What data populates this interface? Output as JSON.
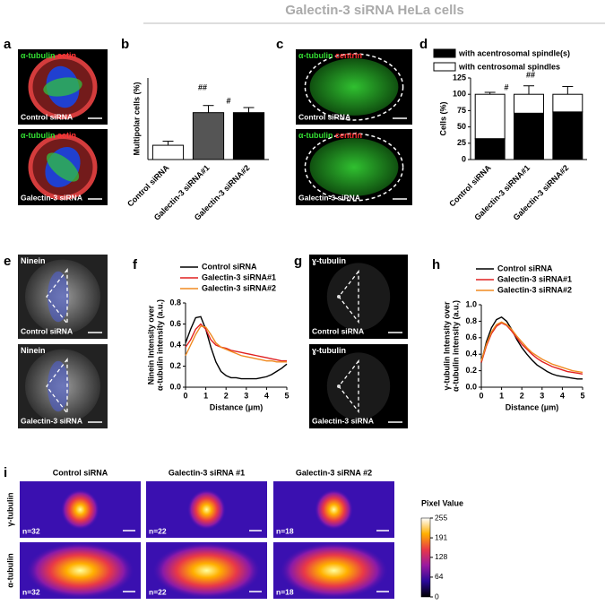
{
  "title": "Galectin-3 siRNA HeLa cells",
  "panel_labels": [
    "a",
    "b",
    "c",
    "d",
    "e",
    "f",
    "g",
    "h",
    "i"
  ],
  "images": {
    "a": [
      {
        "channels": [
          {
            "text": "α-tubulin",
            "color": "#33dd33"
          },
          {
            "text": "actin",
            "color": "#ff3333"
          }
        ],
        "caption": "Control siRNA"
      },
      {
        "channels": [
          {
            "text": "α-tubulin",
            "color": "#33dd33"
          },
          {
            "text": "actin",
            "color": "#ff3333"
          }
        ],
        "caption": "Galectin-3 siRNA"
      }
    ],
    "c": [
      {
        "channels": [
          {
            "text": "α-tubulin",
            "color": "#33dd33"
          },
          {
            "text": "centrin",
            "color": "#ff3333"
          }
        ],
        "caption": "Control siRNA"
      },
      {
        "channels": [
          {
            "text": "α-tubulin",
            "color": "#33dd33"
          },
          {
            "text": "centrin",
            "color": "#ff3333"
          }
        ],
        "caption": "Galectin-3 siRNA"
      }
    ],
    "e": [
      {
        "channels": [
          {
            "text": "Ninein",
            "color": "#ffffff"
          }
        ],
        "caption": "Control siRNA"
      },
      {
        "channels": [
          {
            "text": "Ninein",
            "color": "#ffffff"
          }
        ],
        "caption": "Galectin-3 siRNA"
      }
    ],
    "g": [
      {
        "channels": [
          {
            "text": "ɣ-tubulin",
            "color": "#ffffff"
          }
        ],
        "caption": "Control siRNA"
      },
      {
        "channels": [
          {
            "text": "ɣ-tubulin",
            "color": "#ffffff"
          }
        ],
        "caption": "Galectin-3 siRNA"
      }
    ]
  },
  "heatmap": {
    "columns": [
      "Control siRNA",
      "Galectin-3 siRNA #1",
      "Galectin-3 siRNA #2"
    ],
    "rows": [
      "γ-tubulin",
      "α-tubulin"
    ],
    "n": [
      [
        "n=32",
        "n=22",
        "n=18"
      ],
      [
        "n=32",
        "n=22",
        "n=18"
      ]
    ],
    "colorbar": {
      "label": "Pixel Value",
      "lim": [
        0,
        255
      ],
      "ticks": [
        0,
        64,
        128,
        191,
        255
      ]
    }
  },
  "chart_data": [
    {
      "type": "bar",
      "ylabel": "Multipolar cells (%)",
      "categories": [
        "Control siRNA",
        "Galectin-3 siRNA#1",
        "Galectin-3 siRNA#2"
      ],
      "values": [
        7,
        23,
        23
      ],
      "errors": [
        2,
        3.5,
        2.5
      ],
      "colors": [
        "#ffffff",
        "#555555",
        "#000000"
      ],
      "ylim": [
        0,
        40
      ],
      "annotations": [
        "##",
        "#"
      ]
    },
    {
      "type": "stacked_bar",
      "ylabel": "Cells (%)",
      "categories": [
        "Control siRNA",
        "Galectin-3 siRNA#1",
        "Galectin-3 siRNA#2"
      ],
      "series": [
        {
          "name": "with acentrosomal spindle(s)",
          "color": "#000000",
          "values": [
            32,
            71,
            73
          ],
          "errors": [
            3,
            13,
            11
          ]
        },
        {
          "name": "with centrosomal spindles",
          "color": "#ffffff",
          "values": [
            68,
            29,
            27
          ],
          "errors": [
            3,
            13,
            12
          ]
        }
      ],
      "ylim": [
        0,
        125
      ],
      "yticks": [
        0,
        25,
        50,
        75,
        100,
        125
      ],
      "annotations": [
        "#",
        "##"
      ]
    },
    {
      "type": "line",
      "xlabel": "Distance (μm)",
      "ylabel": [
        "Ninein Intensity over",
        "α-tubulin intensity (a.u.)"
      ],
      "x": [
        0,
        0.25,
        0.5,
        0.75,
        1,
        1.25,
        1.5,
        1.75,
        2,
        2.25,
        2.5,
        2.75,
        3,
        3.25,
        3.5,
        3.75,
        4,
        4.25,
        4.5,
        4.75,
        5
      ],
      "series": [
        {
          "name": "Control siRNA",
          "color": "#000000",
          "values": [
            0.42,
            0.55,
            0.66,
            0.67,
            0.55,
            0.38,
            0.24,
            0.15,
            0.11,
            0.09,
            0.09,
            0.08,
            0.08,
            0.08,
            0.08,
            0.09,
            0.1,
            0.12,
            0.15,
            0.18,
            0.22
          ]
        },
        {
          "name": "Galectin-3 siRNA#1",
          "color": "#e02020",
          "values": [
            0.38,
            0.45,
            0.55,
            0.6,
            0.55,
            0.45,
            0.4,
            0.38,
            0.37,
            0.35,
            0.34,
            0.33,
            0.32,
            0.31,
            0.3,
            0.29,
            0.28,
            0.27,
            0.26,
            0.25,
            0.25
          ]
        },
        {
          "name": "Galectin-3 siRNA#2",
          "color": "#f08a20",
          "values": [
            0.3,
            0.4,
            0.5,
            0.58,
            0.57,
            0.5,
            0.42,
            0.38,
            0.36,
            0.34,
            0.32,
            0.3,
            0.29,
            0.28,
            0.27,
            0.26,
            0.25,
            0.25,
            0.24,
            0.24,
            0.24
          ]
        }
      ],
      "xlim": [
        0,
        5
      ],
      "xticks": [
        0,
        1,
        2,
        3,
        4,
        5
      ],
      "ylim": [
        0,
        0.8
      ],
      "yticks": [
        {
          "value": 0,
          "label": "0.0"
        },
        0.2,
        0.4,
        0.6,
        0.8
      ]
    },
    {
      "type": "line",
      "xlabel": "Distance (μm)",
      "ylabel": [
        "γ-tubulin Intensity over",
        "α-tubulin intensity (a.u.)"
      ],
      "x": [
        0,
        0.25,
        0.5,
        0.75,
        1,
        1.25,
        1.5,
        1.75,
        2,
        2.25,
        2.5,
        2.75,
        3,
        3.25,
        3.5,
        3.75,
        4,
        4.25,
        4.5,
        4.75,
        5
      ],
      "series": [
        {
          "name": "Control siRNA",
          "color": "#000000",
          "values": [
            0.3,
            0.55,
            0.72,
            0.82,
            0.85,
            0.8,
            0.7,
            0.58,
            0.48,
            0.4,
            0.33,
            0.27,
            0.23,
            0.19,
            0.16,
            0.14,
            0.13,
            0.12,
            0.11,
            0.1,
            0.1
          ]
        },
        {
          "name": "Galectin-3 siRNA#1",
          "color": "#e02020",
          "values": [
            0.3,
            0.5,
            0.65,
            0.74,
            0.78,
            0.75,
            0.68,
            0.6,
            0.52,
            0.46,
            0.4,
            0.35,
            0.31,
            0.28,
            0.25,
            0.23,
            0.21,
            0.19,
            0.18,
            0.17,
            0.16
          ]
        },
        {
          "name": "Galectin-3 siRNA#2",
          "color": "#f08a20",
          "values": [
            0.32,
            0.52,
            0.67,
            0.76,
            0.79,
            0.76,
            0.7,
            0.62,
            0.55,
            0.48,
            0.42,
            0.38,
            0.34,
            0.31,
            0.28,
            0.26,
            0.24,
            0.22,
            0.2,
            0.19,
            0.18
          ]
        }
      ],
      "xlim": [
        0,
        5
      ],
      "xticks": [
        0,
        1,
        2,
        3,
        4,
        5
      ],
      "ylim": [
        0,
        1
      ],
      "yticks": [
        {
          "value": 0,
          "label": "0.0"
        },
        0.2,
        0.4,
        0.6,
        0.8,
        {
          "value": 1,
          "label": "1.0"
        }
      ]
    }
  ]
}
